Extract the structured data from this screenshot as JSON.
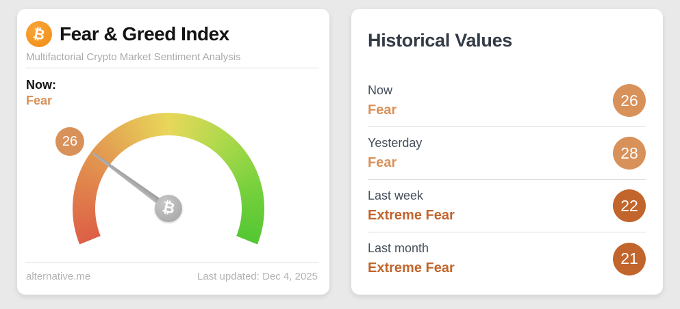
{
  "icons": {
    "bitcoin": "₿"
  },
  "colors": {
    "fear": "#d9915a",
    "extreme_fear": "#c2652c",
    "bitcoin_orange": "#f7941c",
    "page_background": "#e9e9e9"
  },
  "fear_greed_card": {
    "title": "Fear & Greed Index",
    "subtitle": "Multifactorial Crypto Market Sentiment Analysis",
    "now_label": "Now:",
    "current_sentiment": "Fear",
    "current_value": "26",
    "source": "alternative.me",
    "last_updated": "Last updated: Dec 4, 2025"
  },
  "historical_card": {
    "title": "Historical Values",
    "rows": [
      {
        "label": "Now",
        "sentiment": "Fear",
        "value": "26",
        "accent": "#d9915a"
      },
      {
        "label": "Yesterday",
        "sentiment": "Fear",
        "value": "28",
        "accent": "#d9915a"
      },
      {
        "label": "Last week",
        "sentiment": "Extreme Fear",
        "value": "22",
        "accent": "#c2652c"
      },
      {
        "label": "Last month",
        "sentiment": "Extreme Fear",
        "value": "21",
        "accent": "#c2652c"
      }
    ]
  },
  "chart_data": {
    "type": "gauge",
    "title": "Fear & Greed Index",
    "value": 26,
    "min": 0,
    "max": 100,
    "label": "Fear",
    "scale_note": "0 = Extreme Fear (red, left end) to 100 = Extreme Greed (green, right end)",
    "arc_span_degrees": 224,
    "start_css_deg": 248,
    "start_math_deg": 202,
    "gradient": [
      {
        "at": 0.0,
        "color": "#dd5f46"
      },
      {
        "at": 0.25,
        "color": "#e2944f"
      },
      {
        "at": 0.5,
        "color": "#e8d75a"
      },
      {
        "at": 0.68,
        "color": "#abd94b"
      },
      {
        "at": 0.85,
        "color": "#74d03c"
      },
      {
        "at": 1.0,
        "color": "#53c733"
      }
    ],
    "needle_color": "#a6a6a6",
    "historical_series": {
      "categories": [
        "Now",
        "Yesterday",
        "Last week",
        "Last month"
      ],
      "values": [
        26,
        28,
        22,
        21
      ],
      "sentiments": [
        "Fear",
        "Fear",
        "Extreme Fear",
        "Extreme Fear"
      ]
    }
  }
}
